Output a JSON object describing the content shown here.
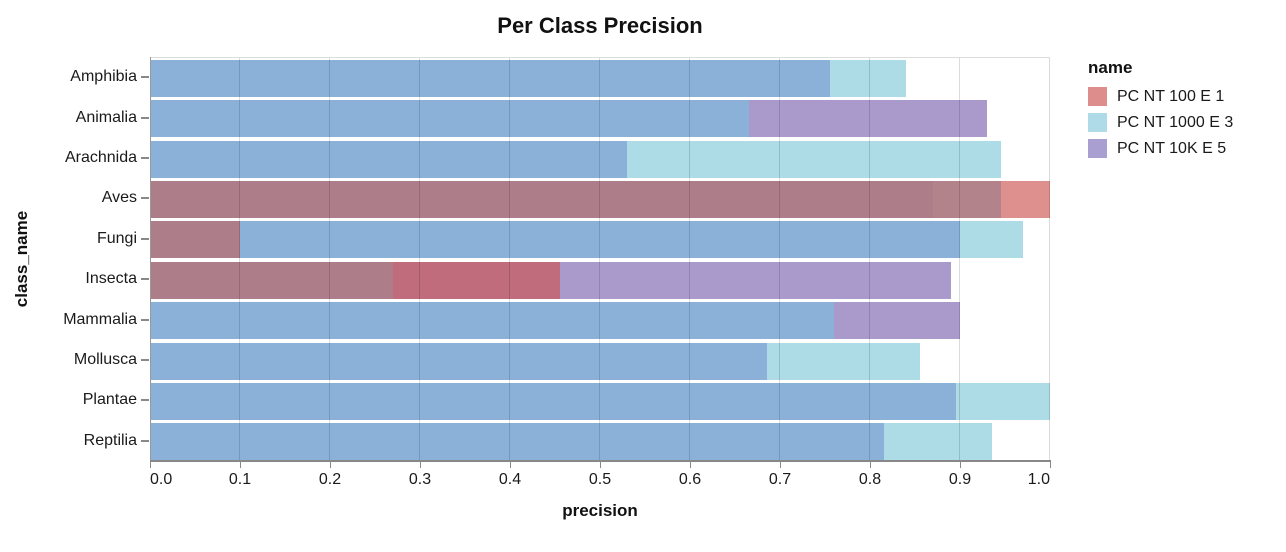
{
  "title": "Per Class Precision",
  "x_axis": {
    "label": "precision",
    "tick_labels": [
      "0.0",
      "0.1",
      "0.2",
      "0.3",
      "0.4",
      "0.5",
      "0.6",
      "0.7",
      "0.8",
      "0.9",
      "1.0"
    ]
  },
  "y_axis": {
    "label": "class_name"
  },
  "legend": {
    "title": "name",
    "entries": [
      {
        "label": "PC NT 100 E 1",
        "color": "#dd8e8c"
      },
      {
        "label": "PC NT 1000 E 3",
        "color": "#aedbe7"
      },
      {
        "label": "PC NT 10K E 5",
        "color": "#a9a0d1"
      }
    ]
  },
  "chart_data": {
    "type": "bar",
    "orientation": "horizontal",
    "title": "Per Class Precision",
    "xlabel": "precision",
    "ylabel": "class_name",
    "xlim": [
      0.0,
      1.0
    ],
    "x_tick_step": 0.1,
    "grid": true,
    "legend_position": "right",
    "overlap_style": "layered-translucent-bars",
    "categories": [
      "Amphibia",
      "Animalia",
      "Arachnida",
      "Aves",
      "Fungi",
      "Insecta",
      "Mammalia",
      "Mollusca",
      "Plantae",
      "Reptilia"
    ],
    "series": [
      {
        "key": "r",
        "name": "PC NT 100 E 1",
        "color": "#dd8e8c",
        "values": [
          null,
          null,
          null,
          1.0,
          0.1,
          0.455,
          null,
          null,
          null,
          null
        ]
      },
      {
        "key": "b",
        "name": "PC NT 1000 E 3",
        "color": "#aedbe7",
        "values": [
          0.84,
          0.665,
          0.945,
          0.945,
          0.97,
          0.27,
          0.76,
          0.855,
          1.0,
          0.935
        ]
      },
      {
        "key": "p",
        "name": "PC NT 10K E 5",
        "color": "#a9a0d1",
        "values": [
          0.755,
          0.93,
          0.53,
          0.87,
          0.9,
          0.89,
          0.9,
          0.685,
          0.895,
          0.815
        ]
      }
    ],
    "observed_overlap_colors": {
      "r": "#dd908e",
      "b": "#addbe6",
      "p": "#aa99cb",
      "rb": "#b3838b",
      "rp": "#c06c7c",
      "bp": "#8bb1d8",
      "rbp": "#ad7d8a"
    }
  }
}
